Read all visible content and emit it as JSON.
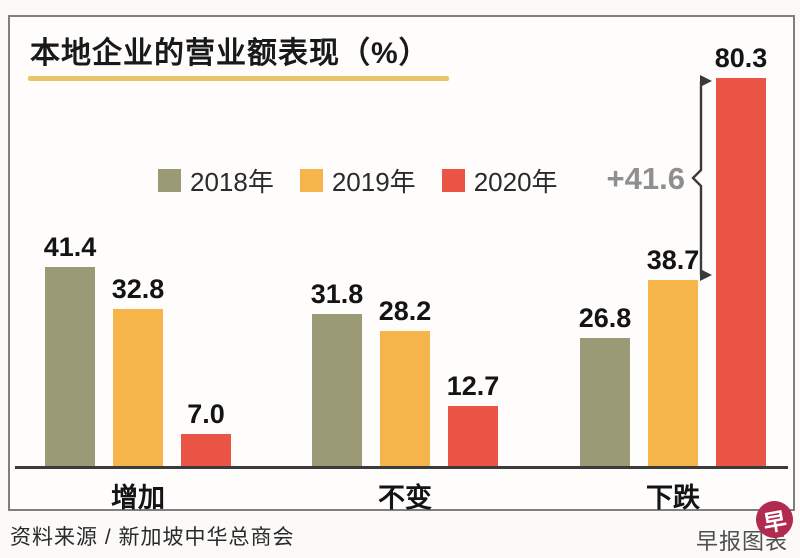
{
  "title": "本地企业的营业额表现（%）",
  "legend": [
    {
      "label": "2018年",
      "color": "#9b9a77"
    },
    {
      "label": "2019年",
      "color": "#f5b54a"
    },
    {
      "label": "2020年",
      "color": "#ea5445"
    }
  ],
  "chart_data": {
    "type": "bar",
    "title": "本地企业的营业额表现（%）",
    "categories": [
      "增加",
      "不变",
      "下跌"
    ],
    "series": [
      {
        "name": "2018年",
        "color": "#9b9a77",
        "values": [
          41.4,
          31.8,
          26.8
        ]
      },
      {
        "name": "2019年",
        "color": "#f5b54a",
        "values": [
          32.8,
          28.2,
          38.7
        ]
      },
      {
        "name": "2020年",
        "color": "#ea5445",
        "values": [
          7.0,
          12.7,
          80.3
        ]
      }
    ],
    "ylim": [
      0,
      85
    ],
    "grid": false,
    "legend_position": "top-center",
    "value_labels": true,
    "annotation": {
      "text": "+41.6",
      "category": "下跌",
      "from_series": "2019年",
      "from_value": 38.7,
      "to_series": "2020年",
      "to_value": 80.3
    }
  },
  "footer": {
    "source": "资料来源 / 新加坡中华总商会",
    "credit": "早报图表",
    "logo_glyph": "早"
  }
}
